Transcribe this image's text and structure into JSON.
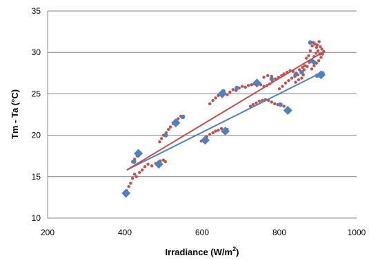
{
  "chart_data": {
    "type": "scatter",
    "xlabel": "Irradiance (W/m",
    "xlabel_superscript": "2",
    "xlabel_close": ")",
    "ylabel": "Tm - Ta (°C)",
    "xlim": [
      200,
      1000
    ],
    "ylim": [
      10,
      35
    ],
    "x_ticks": [
      "200",
      "400",
      "600",
      "800",
      "1000"
    ],
    "y_ticks": [
      "10",
      "15",
      "20",
      "25",
      "30",
      "35"
    ],
    "x_tick_values": [
      200,
      400,
      600,
      800,
      1000
    ],
    "y_tick_values": [
      10,
      15,
      20,
      25,
      30,
      35
    ],
    "grid": "horizontal",
    "colors": {
      "diamonds": "#4f81bd",
      "dots": "#c0504d",
      "trend_blue": "#4f81bd",
      "trend_red": "#c0504d"
    },
    "series": [
      {
        "marker": "diamond",
        "points": [
          [
            403,
            13.0
          ],
          [
            435,
            17.8
          ],
          [
            488,
            16.5
          ],
          [
            532,
            21.5
          ],
          [
            608,
            19.4
          ],
          [
            652,
            25.0
          ],
          [
            660,
            20.5
          ],
          [
            742,
            26.3
          ],
          [
            822,
            23.0
          ],
          [
            908,
            27.3
          ]
        ]
      },
      {
        "marker": "dot",
        "points": [
          [
            405,
            13.3
          ],
          [
            410,
            13.8
          ],
          [
            415,
            14.2
          ],
          [
            420,
            14.8
          ],
          [
            425,
            15.3
          ],
          [
            430,
            15.0
          ],
          [
            438,
            15.5
          ],
          [
            445,
            15.8
          ],
          [
            452,
            16.2
          ],
          [
            460,
            16.5
          ],
          [
            470,
            16.3
          ],
          [
            480,
            16.6
          ],
          [
            492,
            16.9
          ],
          [
            500,
            17.0
          ],
          [
            505,
            16.8
          ],
          [
            420,
            16.8
          ],
          [
            425,
            17.1
          ],
          [
            432,
            17.5
          ],
          [
            440,
            17.9
          ],
          [
            490,
            19.2
          ],
          [
            495,
            19.6
          ],
          [
            500,
            20.0
          ],
          [
            507,
            20.3
          ],
          [
            513,
            20.7
          ],
          [
            518,
            21.0
          ],
          [
            525,
            21.4
          ],
          [
            530,
            21.7
          ],
          [
            538,
            22.0
          ],
          [
            545,
            22.3
          ],
          [
            552,
            22.3
          ],
          [
            598,
            19.3
          ],
          [
            605,
            19.5
          ],
          [
            612,
            19.8
          ],
          [
            620,
            20.1
          ],
          [
            628,
            20.3
          ],
          [
            635,
            20.5
          ],
          [
            642,
            20.6
          ],
          [
            650,
            20.8
          ],
          [
            658,
            20.6
          ],
          [
            665,
            20.7
          ],
          [
            620,
            23.8
          ],
          [
            628,
            24.2
          ],
          [
            635,
            24.5
          ],
          [
            642,
            24.8
          ],
          [
            650,
            25.0
          ],
          [
            658,
            25.1
          ],
          [
            665,
            24.9
          ],
          [
            672,
            25.2
          ],
          [
            680,
            25.5
          ],
          [
            688,
            25.4
          ],
          [
            696,
            25.7
          ],
          [
            704,
            25.9
          ],
          [
            712,
            25.8
          ],
          [
            720,
            26.0
          ],
          [
            728,
            26.1
          ],
          [
            735,
            26.2
          ],
          [
            745,
            26.3
          ],
          [
            752,
            26.1
          ],
          [
            760,
            25.9
          ],
          [
            768,
            26.0
          ],
          [
            775,
            26.2
          ],
          [
            782,
            26.5
          ],
          [
            790,
            26.8
          ],
          [
            798,
            27.0
          ],
          [
            806,
            27.2
          ],
          [
            812,
            27.4
          ],
          [
            820,
            27.6
          ],
          [
            828,
            27.8
          ],
          [
            836,
            27.7
          ],
          [
            844,
            27.5
          ],
          [
            852,
            27.9
          ],
          [
            860,
            28.2
          ],
          [
            866,
            28.4
          ],
          [
            725,
            23.5
          ],
          [
            732,
            23.7
          ],
          [
            740,
            23.9
          ],
          [
            748,
            24.1
          ],
          [
            756,
            24.2
          ],
          [
            764,
            24.3
          ],
          [
            772,
            24.2
          ],
          [
            780,
            24.0
          ],
          [
            788,
            23.8
          ],
          [
            796,
            23.7
          ],
          [
            804,
            23.6
          ],
          [
            812,
            23.5
          ],
          [
            800,
            25.6
          ],
          [
            808,
            25.9
          ],
          [
            816,
            26.3
          ],
          [
            824,
            26.6
          ],
          [
            832,
            26.9
          ],
          [
            840,
            27.1
          ],
          [
            848,
            27.3
          ],
          [
            856,
            27.6
          ],
          [
            864,
            27.9
          ],
          [
            872,
            28.3
          ],
          [
            878,
            28.8
          ],
          [
            884,
            29.1
          ],
          [
            890,
            29.5
          ],
          [
            895,
            29.9
          ],
          [
            880,
            30.2
          ],
          [
            885,
            30.8
          ],
          [
            888,
            31.2
          ],
          [
            892,
            31.0
          ],
          [
            896,
            30.6
          ],
          [
            900,
            30.2
          ],
          [
            905,
            29.8
          ],
          [
            884,
            28.0
          ],
          [
            890,
            28.4
          ],
          [
            896,
            28.7
          ],
          [
            902,
            29.0
          ],
          [
            908,
            29.4
          ],
          [
            912,
            29.8
          ],
          [
            915,
            30.1
          ],
          [
            870,
            29.3
          ],
          [
            876,
            29.6
          ],
          [
            898,
            30.9
          ],
          [
            903,
            31.3
          ],
          [
            906,
            30.7
          ],
          [
            910,
            30.4
          ],
          [
            760,
            27.0
          ],
          [
            770,
            27.2
          ],
          [
            780,
            27.1
          ],
          [
            842,
            26.4
          ],
          [
            850,
            26.7
          ],
          [
            858,
            26.9
          ],
          [
            862,
            27.3
          ]
        ]
      },
      {
        "marker": "big-dot",
        "points": [
          [
            424,
            16.8
          ],
          [
            506,
            20.0
          ],
          [
            550,
            22.2
          ],
          [
            655,
            25.3
          ],
          [
            690,
            25.7
          ],
          [
            780,
            26.8
          ],
          [
            803,
            23.7
          ],
          [
            842,
            27.3
          ],
          [
            858,
            27.6
          ],
          [
            880,
            31.2
          ],
          [
            884,
            29.0
          ],
          [
            890,
            28.8
          ],
          [
            898,
            27.2
          ],
          [
            912,
            27.4
          ]
        ]
      }
    ],
    "trendlines": [
      {
        "name": "",
        "color": "blue",
        "x": [
          405,
          915
        ],
        "y": [
          15.8,
          27.7
        ]
      },
      {
        "name": "",
        "color": "red",
        "x": [
          405,
          915
        ],
        "y": [
          15.8,
          30.1
        ]
      }
    ]
  }
}
